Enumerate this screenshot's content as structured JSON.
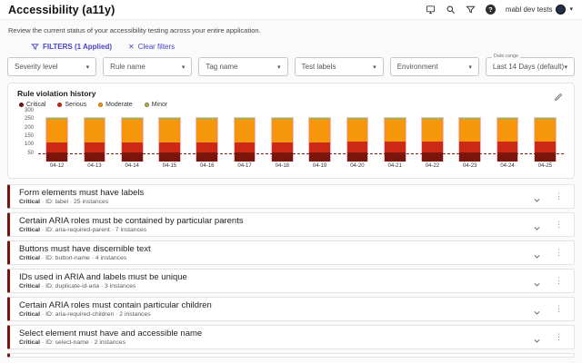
{
  "header": {
    "title": "Accessibility (a11y)",
    "workspace": "mabl dev tests"
  },
  "subtitle": "Review the current status of your accessibility testing across your entire application.",
  "filters": {
    "label": "FILTERS (1 Applied)",
    "clear_label": "Clear filters",
    "clear_x": "✕",
    "dropdowns": [
      {
        "placeholder": "Severity level"
      },
      {
        "placeholder": "Rule name"
      },
      {
        "placeholder": "Tag name"
      },
      {
        "placeholder": "Test labels"
      },
      {
        "placeholder": "Environment"
      }
    ],
    "date_range": {
      "label": "Date range",
      "value": "Last 14 Days (default)"
    }
  },
  "chart_card": {
    "title": "Rule violation history"
  },
  "chart_data": {
    "type": "bar",
    "stacked": true,
    "title": "Rule violation history",
    "categories": [
      "04-12",
      "04-13",
      "04-14",
      "04-15",
      "04-16",
      "04-17",
      "04-18",
      "04-19",
      "04-20",
      "04-21",
      "04-22",
      "04-23",
      "04-24",
      "04-25"
    ],
    "series": [
      {
        "name": "Critical",
        "color": "#7a150b",
        "values": [
          55,
          55,
          55,
          55,
          55,
          55,
          55,
          55,
          55,
          55,
          55,
          55,
          55,
          55
        ]
      },
      {
        "name": "Serious",
        "color": "#cc2a14",
        "values": [
          62,
          62,
          62,
          62,
          62,
          62,
          62,
          62,
          66,
          66,
          66,
          66,
          66,
          66
        ]
      },
      {
        "name": "Moderate",
        "color": "#f6960b",
        "values": [
          135,
          135,
          135,
          135,
          135,
          135,
          135,
          135,
          131,
          131,
          131,
          131,
          131,
          131
        ]
      },
      {
        "name": "Minor",
        "color": "#b3aa50",
        "values": [
          10,
          10,
          10,
          10,
          10,
          10,
          10,
          10,
          10,
          10,
          10,
          10,
          10,
          10
        ]
      }
    ],
    "ylim": [
      0,
      300
    ],
    "yticks": [
      50,
      100,
      150,
      200,
      250,
      300
    ],
    "threshold_line": 50,
    "grid": false,
    "legend_position": "top-left"
  },
  "violations": [
    {
      "title": "Form elements must have labels",
      "severity": "Critical",
      "meta": " · ID: label · 25 instances"
    },
    {
      "title": "Certain ARIA roles must be contained by particular parents",
      "severity": "Critical",
      "meta": " · ID: aria-required-parent · 7 instances"
    },
    {
      "title": "Buttons must have discernible text",
      "severity": "Critical",
      "meta": " · ID: button-name · 4 instances"
    },
    {
      "title": "IDs used in ARIA and labels must be unique",
      "severity": "Critical",
      "meta": " · ID: duplicate-id-aria · 3 instances"
    },
    {
      "title": "Certain ARIA roles must contain particular children",
      "severity": "Critical",
      "meta": " · ID: aria-required-children · 2 instances"
    },
    {
      "title": "Select element must have and accessible name",
      "severity": "Critical",
      "meta": " · ID: select-name · 2 instances"
    }
  ]
}
